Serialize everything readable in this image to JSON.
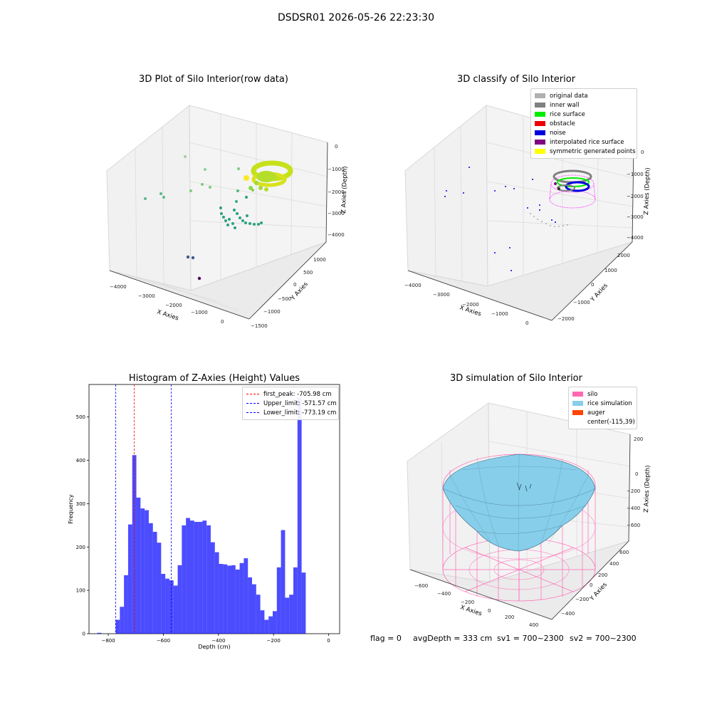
{
  "figure": {
    "suptitle": "DSDSR01 2026-05-26 22:23:30"
  },
  "panels": {
    "raw": {
      "title": "3D Plot of Silo Interior(row data)",
      "xlabel": "X Axies",
      "ylabel": "Y Axies",
      "zlabel": "Z Axies (Depth)",
      "xticks": [
        "−4000",
        "−3000",
        "−2000",
        "−1000",
        "0"
      ],
      "yticks": [
        "−1500",
        "−1000",
        "−500",
        "0",
        "500",
        "1000"
      ],
      "zticks": [
        "0",
        "−1000",
        "−2000",
        "−3000",
        "−4000"
      ]
    },
    "classify": {
      "title": "3D classify of Silo Interior",
      "xlabel": "X Axies",
      "ylabel": "Y Axies",
      "zlabel": "Z Axies (Depth)",
      "xticks": [
        "−4000",
        "−3000",
        "−2000",
        "−1000",
        "0"
      ],
      "yticks": [
        "−2000",
        "−1000",
        "0",
        "1000",
        "2000"
      ],
      "zticks": [
        "0",
        "−1000",
        "−2000",
        "−3000",
        "−4000"
      ],
      "legend": [
        {
          "label": "original data",
          "color": "#b0b0b0"
        },
        {
          "label": "inner wall",
          "color": "#808080"
        },
        {
          "label": "rice surface",
          "color": "#00ee00"
        },
        {
          "label": "obstacle",
          "color": "#ee0000"
        },
        {
          "label": "noise",
          "color": "#0000dd"
        },
        {
          "label": "interpolated rice surface",
          "color": "#800080"
        },
        {
          "label": "symmetric generated points",
          "color": "#ffff00"
        }
      ]
    },
    "simulation": {
      "title": "3D simulation of Silo Interior",
      "xlabel": "X Axies",
      "ylabel": "Y Axies",
      "zlabel": "Z Axies (Depth)",
      "xticks": [
        "−600",
        "−400",
        "−200",
        "0",
        "200",
        "400"
      ],
      "yticks": [
        "−400",
        "−200",
        "0",
        "200",
        "400",
        "600"
      ],
      "zticks": [
        "200",
        "0",
        "−200",
        "−400",
        "−600"
      ],
      "legend": [
        {
          "label": "silo",
          "color": "#ff69b4"
        },
        {
          "label": "rice simulation",
          "color": "#87ceeb"
        },
        {
          "label": "auger",
          "color": "#ff4500"
        },
        {
          "label": "center(-115,39)",
          "color": ""
        }
      ]
    }
  },
  "status": {
    "flag": "flag = 0",
    "avg_depth": "avgDepth = 333 cm",
    "sv1": "sv1 = 700~2300",
    "sv2": "sv2 = 700~2300"
  },
  "chart_data": [
    {
      "type": "histogram",
      "title": "Histogram of Z-Axies (Height) Values",
      "xlabel": "Depth (cm)",
      "ylabel": "Frequency",
      "xlim": [
        -870,
        40
      ],
      "ylim": [
        0,
        575
      ],
      "xticks": [
        -800,
        -600,
        -400,
        -200,
        0
      ],
      "yticks": [
        0,
        100,
        200,
        300,
        400,
        500
      ],
      "bin_width": 15,
      "bin_start": -773,
      "bar_color": "#0000ff",
      "counts": [
        32,
        62,
        135,
        252,
        412,
        314,
        289,
        285,
        255,
        235,
        210,
        138,
        127,
        123,
        111,
        158,
        250,
        267,
        261,
        258,
        258,
        261,
        250,
        211,
        188,
        161,
        160,
        157,
        158,
        148,
        163,
        174,
        130,
        114,
        90,
        54,
        32,
        40,
        52,
        153,
        239,
        83,
        90,
        153,
        545,
        141
      ],
      "outliers": [
        {
          "x": -840,
          "count": 2
        }
      ],
      "vlines": [
        {
          "label": "first_peak: -705.98 cm",
          "x": -705.98,
          "color": "#ff0000"
        },
        {
          "label": "Upper_limit: -571.57 cm",
          "x": -571.57,
          "color": "#0000ff"
        },
        {
          "label": "Lower_limit: -773.19 cm",
          "x": -773.19,
          "color": "#0000ff"
        }
      ]
    }
  ]
}
